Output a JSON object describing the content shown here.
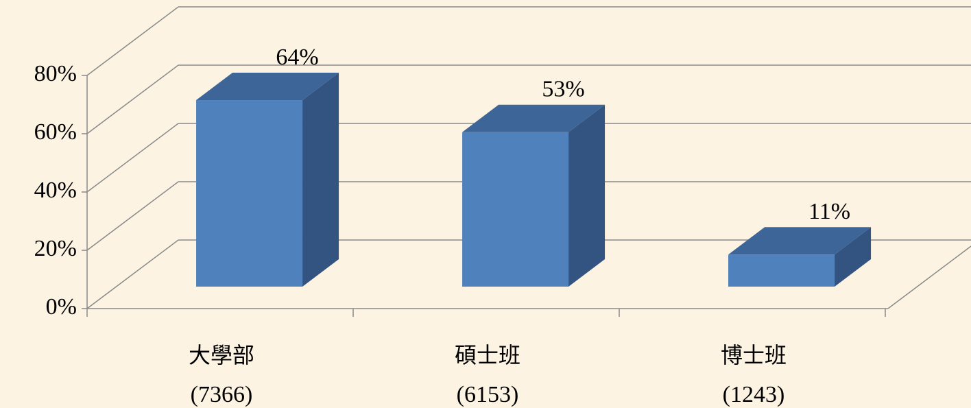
{
  "chart_data": {
    "type": "bar3d",
    "categories": [
      [
        "大學部",
        "(7366)"
      ],
      [
        "碩士班",
        "(6153)"
      ],
      [
        "博士班",
        "(1243)"
      ]
    ],
    "values": [
      64,
      53,
      11
    ],
    "value_labels": [
      "64%",
      "53%",
      "11%"
    ],
    "color": "#4f81bd",
    "ylim": [
      0,
      80
    ],
    "yticks": [
      {
        "value": 0,
        "label": "0%"
      },
      {
        "value": 20,
        "label": "20%"
      },
      {
        "value": 40,
        "label": "40%"
      },
      {
        "value": 60,
        "label": "60%"
      },
      {
        "value": 80,
        "label": "80%"
      }
    ],
    "grid": true
  }
}
